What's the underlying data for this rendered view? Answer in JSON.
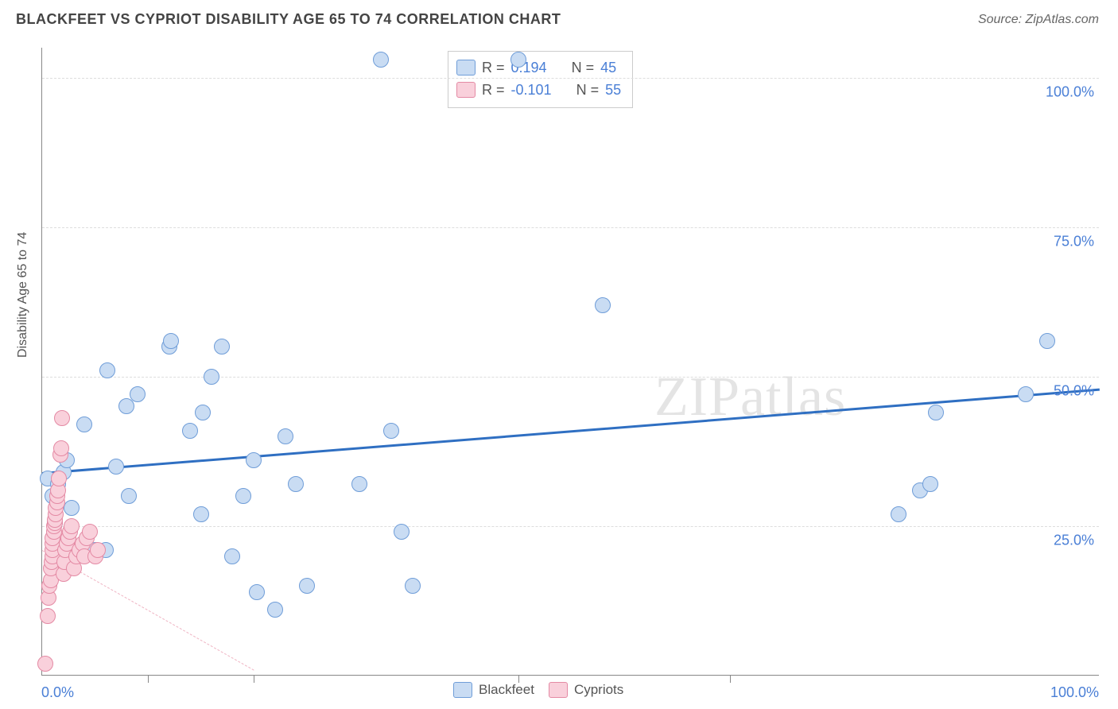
{
  "title": "BLACKFEET VS CYPRIOT DISABILITY AGE 65 TO 74 CORRELATION CHART",
  "source": "Source: ZipAtlas.com",
  "watermark": "ZIPatlas",
  "ylabel": "Disability Age 65 to 74",
  "chart": {
    "type": "scatter",
    "background_color": "#ffffff",
    "grid_color": "#dddddd",
    "axis_color": "#888888",
    "xlim": [
      0,
      100
    ],
    "ylim": [
      0,
      105
    ],
    "xtick_positions": [
      0,
      10,
      20,
      45,
      65,
      100
    ],
    "yticks": [
      {
        "v": 25,
        "label": "25.0%"
      },
      {
        "v": 50,
        "label": "50.0%"
      },
      {
        "v": 75,
        "label": "75.0%"
      },
      {
        "v": 100,
        "label": "100.0%"
      }
    ],
    "x0_label": "0.0%",
    "x100_label": "100.0%",
    "marker_radius": 10,
    "marker_stroke_width": 1.2,
    "series": [
      {
        "name": "Blackfeet",
        "fill": "#c9dcf3",
        "stroke": "#6f9dd8",
        "stats_R": "0.194",
        "stats_N": "45",
        "trend": {
          "x1": 0,
          "y1": 34,
          "x2": 100,
          "y2": 48,
          "width": 3,
          "style": "solid",
          "color": "#2f6fc2"
        },
        "points": [
          [
            0.5,
            33
          ],
          [
            1,
            30
          ],
          [
            1.2,
            25.5
          ],
          [
            1.5,
            32
          ],
          [
            2,
            34
          ],
          [
            2.3,
            36
          ],
          [
            2.8,
            28
          ],
          [
            4,
            42
          ],
          [
            5,
            21
          ],
          [
            6,
            21
          ],
          [
            6.2,
            51
          ],
          [
            7,
            35
          ],
          [
            8,
            45
          ],
          [
            8.2,
            30
          ],
          [
            9,
            47
          ],
          [
            12,
            55
          ],
          [
            12.2,
            56
          ],
          [
            14,
            41
          ],
          [
            15,
            27
          ],
          [
            15.2,
            44
          ],
          [
            16,
            50
          ],
          [
            17,
            55
          ],
          [
            18,
            20
          ],
          [
            19,
            30
          ],
          [
            20,
            36
          ],
          [
            20.3,
            14
          ],
          [
            22,
            11
          ],
          [
            23,
            40
          ],
          [
            24,
            32
          ],
          [
            25,
            15
          ],
          [
            30,
            32
          ],
          [
            32,
            103
          ],
          [
            33,
            41
          ],
          [
            34,
            24
          ],
          [
            35,
            15
          ],
          [
            45,
            103
          ],
          [
            53,
            62
          ],
          [
            81,
            27
          ],
          [
            83,
            31
          ],
          [
            84,
            32
          ],
          [
            84.5,
            44
          ],
          [
            93,
            47
          ],
          [
            95,
            56
          ]
        ]
      },
      {
        "name": "Cypriots",
        "fill": "#f9d0db",
        "stroke": "#e48aa4",
        "stats_R": "-0.101",
        "stats_N": "55",
        "trend": {
          "x1": 0,
          "y1": 21,
          "x2": 20,
          "y2": 1,
          "width": 1.5,
          "style": "dashed",
          "color": "#efb4c3"
        },
        "points": [
          [
            0.3,
            2
          ],
          [
            0.5,
            10
          ],
          [
            0.6,
            13
          ],
          [
            0.7,
            15
          ],
          [
            0.8,
            16
          ],
          [
            0.8,
            18
          ],
          [
            0.9,
            19
          ],
          [
            1,
            20
          ],
          [
            1,
            21
          ],
          [
            1,
            22
          ],
          [
            1,
            23
          ],
          [
            1.1,
            24
          ],
          [
            1.1,
            25
          ],
          [
            1.2,
            25.5
          ],
          [
            1.2,
            26
          ],
          [
            1.3,
            27
          ],
          [
            1.3,
            28
          ],
          [
            1.4,
            29
          ],
          [
            1.4,
            30
          ],
          [
            1.5,
            31
          ],
          [
            1.6,
            33
          ],
          [
            1.7,
            37
          ],
          [
            1.8,
            38
          ],
          [
            1.9,
            43
          ],
          [
            2,
            17
          ],
          [
            2.1,
            19
          ],
          [
            2.2,
            21
          ],
          [
            2.3,
            22
          ],
          [
            2.5,
            23
          ],
          [
            2.6,
            24
          ],
          [
            2.8,
            25
          ],
          [
            3,
            18
          ],
          [
            3.2,
            20
          ],
          [
            3.5,
            21
          ],
          [
            3.8,
            22
          ],
          [
            4,
            20
          ],
          [
            4.2,
            23
          ],
          [
            4.5,
            24
          ],
          [
            5,
            20
          ],
          [
            5.3,
            21
          ]
        ]
      }
    ]
  },
  "legend_top": {
    "R_label": "R =",
    "N_label": "N ="
  },
  "legend_bottom_labels": [
    "Blackfeet",
    "Cypriots"
  ],
  "colors": {
    "tick_text": "#4a7fd6",
    "axis_text": "#555555"
  }
}
